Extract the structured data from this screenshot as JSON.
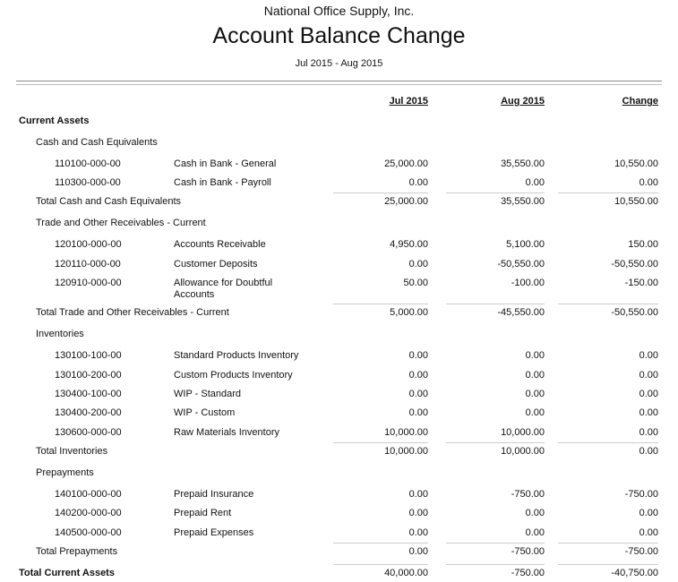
{
  "report": {
    "company": "National Office Supply, Inc.",
    "title": "Account Balance Change",
    "period": "Jul 2015 - Aug 2015"
  },
  "columns": [
    "Jul 2015",
    "Aug 2015",
    "Change"
  ],
  "rows": [
    {
      "type": "section",
      "label": "Current Assets"
    },
    {
      "type": "group",
      "label": "Cash and Cash Equivalents"
    },
    {
      "type": "account",
      "code": "110100-000-00",
      "name": "Cash in Bank - General",
      "values": [
        "25,000.00",
        "35,550.00",
        "10,550.00"
      ]
    },
    {
      "type": "account",
      "code": "110300-000-00",
      "name": "Cash in Bank - Payroll",
      "values": [
        "0.00",
        "0.00",
        "0.00"
      ]
    },
    {
      "type": "total",
      "label": "Total Cash and Cash Equivalents",
      "values": [
        "25,000.00",
        "35,550.00",
        "10,550.00"
      ]
    },
    {
      "type": "group",
      "label": "Trade and Other Receivables - Current"
    },
    {
      "type": "account",
      "code": "120100-000-00",
      "name": "Accounts Receivable",
      "values": [
        "4,950.00",
        "5,100.00",
        "150.00"
      ]
    },
    {
      "type": "account",
      "code": "120110-000-00",
      "name": "Customer Deposits",
      "values": [
        "0.00",
        "-50,550.00",
        "-50,550.00"
      ]
    },
    {
      "type": "account",
      "code": "120910-000-00",
      "name": "Allowance for Doubtful Accounts",
      "values": [
        "50.00",
        "-100.00",
        "-150.00"
      ]
    },
    {
      "type": "total",
      "label": "Total Trade and Other Receivables - Current",
      "values": [
        "5,000.00",
        "-45,550.00",
        "-50,550.00"
      ]
    },
    {
      "type": "group",
      "label": "Inventories"
    },
    {
      "type": "account",
      "code": "130100-100-00",
      "name": "Standard Products Inventory",
      "values": [
        "0.00",
        "0.00",
        "0.00"
      ]
    },
    {
      "type": "account",
      "code": "130100-200-00",
      "name": "Custom Products Inventory",
      "values": [
        "0.00",
        "0.00",
        "0.00"
      ]
    },
    {
      "type": "account",
      "code": "130400-100-00",
      "name": "WIP - Standard",
      "values": [
        "0.00",
        "0.00",
        "0.00"
      ]
    },
    {
      "type": "account",
      "code": "130400-200-00",
      "name": "WIP - Custom",
      "values": [
        "0.00",
        "0.00",
        "0.00"
      ]
    },
    {
      "type": "account",
      "code": "130600-000-00",
      "name": "Raw Materials Inventory",
      "values": [
        "10,000.00",
        "10,000.00",
        "0.00"
      ]
    },
    {
      "type": "total",
      "label": "Total Inventories",
      "values": [
        "10,000.00",
        "10,000.00",
        "0.00"
      ]
    },
    {
      "type": "group",
      "label": "Prepayments"
    },
    {
      "type": "account",
      "code": "140100-000-00",
      "name": "Prepaid Insurance",
      "values": [
        "0.00",
        "-750.00",
        "-750.00"
      ]
    },
    {
      "type": "account",
      "code": "140200-000-00",
      "name": "Prepaid Rent",
      "values": [
        "0.00",
        "0.00",
        "0.00"
      ]
    },
    {
      "type": "account",
      "code": "140500-000-00",
      "name": "Prepaid Expenses",
      "values": [
        "0.00",
        "0.00",
        "0.00"
      ]
    },
    {
      "type": "total",
      "label": "Total Prepayments",
      "values": [
        "0.00",
        "-750.00",
        "-750.00"
      ]
    },
    {
      "type": "grandtotal",
      "label": "Total Current Assets",
      "values": [
        "40,000.00",
        "-750.00",
        "-40,750.00"
      ]
    }
  ]
}
